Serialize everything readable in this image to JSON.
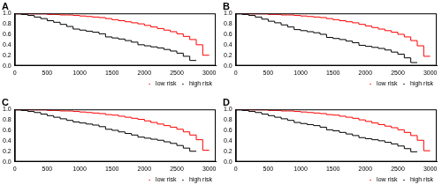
{
  "chart_data": [
    {
      "type": "line",
      "title": "A",
      "line_style": "step",
      "grid": false,
      "legend": "lower right",
      "x": [
        0,
        100,
        200,
        300,
        400,
        500,
        600,
        700,
        800,
        900,
        1000,
        1100,
        1200,
        1300,
        1400,
        1500,
        1600,
        1700,
        1800,
        1900,
        2000,
        2100,
        2200,
        2300,
        2400,
        2500,
        2600,
        2700,
        2800,
        2900,
        3000,
        3100
      ],
      "xlim": [
        0,
        3100
      ],
      "xticks": [
        0,
        500,
        1000,
        1500,
        2000,
        2500,
        3000
      ],
      "ylim": [
        0,
        1
      ],
      "yticks": [
        {
          "value": 0,
          "label": "0.0"
        },
        0.2,
        0.4,
        0.6,
        0.8,
        {
          "value": 1,
          "label": "1.0"
        }
      ],
      "series": [
        {
          "name": "low risk",
          "color": "#ff0000",
          "values": [
            1.0,
            1.0,
            1.0,
            0.99,
            0.99,
            0.99,
            0.98,
            0.98,
            0.97,
            0.97,
            0.96,
            0.95,
            0.94,
            0.93,
            0.92,
            0.9,
            0.88,
            0.86,
            0.84,
            0.82,
            0.8,
            0.77,
            0.74,
            0.71,
            0.68,
            0.65,
            0.61,
            0.56,
            0.5,
            0.4,
            0.2,
            null
          ]
        },
        {
          "name": "high risk",
          "color": "#000000",
          "values": [
            1.0,
            0.99,
            0.98,
            0.96,
            0.93,
            0.9,
            0.86,
            0.83,
            0.79,
            0.75,
            0.7,
            0.68,
            0.66,
            0.64,
            0.61,
            0.55,
            0.53,
            0.51,
            0.48,
            0.45,
            0.4,
            0.38,
            0.36,
            0.34,
            0.31,
            0.28,
            0.24,
            0.18,
            0.1,
            null,
            null,
            null
          ]
        }
      ]
    },
    {
      "type": "line",
      "title": "B",
      "line_style": "step",
      "grid": false,
      "legend": "lower right",
      "x": [
        0,
        100,
        200,
        300,
        400,
        500,
        600,
        700,
        800,
        900,
        1000,
        1100,
        1200,
        1300,
        1400,
        1500,
        1600,
        1700,
        1800,
        1900,
        2000,
        2100,
        2200,
        2300,
        2400,
        2500,
        2600,
        2700,
        2800,
        2900,
        3000,
        3100
      ],
      "xlim": [
        0,
        3100
      ],
      "xticks": [
        0,
        500,
        1000,
        1500,
        2000,
        2500,
        3000
      ],
      "ylim": [
        0,
        1
      ],
      "yticks": [
        {
          "value": 0,
          "label": "0.0"
        },
        0.2,
        0.4,
        0.6,
        0.8,
        {
          "value": 1,
          "label": "1.0"
        }
      ],
      "series": [
        {
          "name": "low risk",
          "color": "#ff0000",
          "values": [
            1.0,
            1.0,
            1.0,
            0.99,
            0.99,
            0.99,
            0.98,
            0.98,
            0.97,
            0.97,
            0.96,
            0.95,
            0.94,
            0.93,
            0.92,
            0.9,
            0.88,
            0.86,
            0.84,
            0.82,
            0.79,
            0.76,
            0.73,
            0.7,
            0.67,
            0.64,
            0.6,
            0.55,
            0.48,
            0.38,
            0.18,
            null
          ]
        },
        {
          "name": "high risk",
          "color": "#000000",
          "values": [
            1.0,
            0.99,
            0.98,
            0.96,
            0.93,
            0.89,
            0.85,
            0.82,
            0.78,
            0.74,
            0.69,
            0.67,
            0.65,
            0.63,
            0.6,
            0.54,
            0.52,
            0.5,
            0.47,
            0.44,
            0.39,
            0.37,
            0.35,
            0.33,
            0.3,
            0.26,
            0.22,
            0.15,
            0.06,
            null,
            null,
            null
          ]
        }
      ]
    },
    {
      "type": "line",
      "title": "C",
      "line_style": "step",
      "grid": false,
      "legend": "lower right",
      "x": [
        0,
        100,
        200,
        300,
        400,
        500,
        600,
        700,
        800,
        900,
        1000,
        1100,
        1200,
        1300,
        1400,
        1500,
        1600,
        1700,
        1800,
        1900,
        2000,
        2100,
        2200,
        2300,
        2400,
        2500,
        2600,
        2700,
        2800,
        2900,
        3000,
        3100
      ],
      "xlim": [
        0,
        3100
      ],
      "xticks": [
        0,
        500,
        1000,
        1500,
        2000,
        2500,
        3000
      ],
      "ylim": [
        0,
        1
      ],
      "yticks": [
        {
          "value": 0,
          "label": "0.0"
        },
        0.2,
        0.4,
        0.6,
        0.8,
        {
          "value": 1,
          "label": "1.0"
        }
      ],
      "series": [
        {
          "name": "low risk",
          "color": "#ff0000",
          "values": [
            1.0,
            1.0,
            1.0,
            0.99,
            0.99,
            0.99,
            0.98,
            0.98,
            0.97,
            0.97,
            0.96,
            0.95,
            0.94,
            0.93,
            0.92,
            0.9,
            0.89,
            0.87,
            0.85,
            0.83,
            0.81,
            0.78,
            0.75,
            0.72,
            0.69,
            0.66,
            0.62,
            0.57,
            0.51,
            0.42,
            0.22,
            null
          ]
        },
        {
          "name": "high risk",
          "color": "#000000",
          "values": [
            1.0,
            0.99,
            0.98,
            0.96,
            0.94,
            0.91,
            0.88,
            0.85,
            0.82,
            0.79,
            0.76,
            0.74,
            0.72,
            0.7,
            0.67,
            0.62,
            0.6,
            0.57,
            0.54,
            0.51,
            0.47,
            0.45,
            0.43,
            0.41,
            0.38,
            0.35,
            0.31,
            0.26,
            0.2,
            null,
            null,
            null
          ]
        }
      ]
    },
    {
      "type": "line",
      "title": "D",
      "line_style": "step",
      "grid": false,
      "legend": "lower right",
      "x": [
        0,
        100,
        200,
        300,
        400,
        500,
        600,
        700,
        800,
        900,
        1000,
        1100,
        1200,
        1300,
        1400,
        1500,
        1600,
        1700,
        1800,
        1900,
        2000,
        2100,
        2200,
        2300,
        2400,
        2500,
        2600,
        2700,
        2800,
        2900,
        3000,
        3100
      ],
      "xlim": [
        0,
        3100
      ],
      "xticks": [
        0,
        500,
        1000,
        1500,
        2000,
        2500,
        3000
      ],
      "ylim": [
        0,
        1
      ],
      "yticks": [
        {
          "value": 0,
          "label": "0.0"
        },
        0.2,
        0.4,
        0.6,
        0.8,
        {
          "value": 1,
          "label": "1.0"
        }
      ],
      "series": [
        {
          "name": "low risk",
          "color": "#ff0000",
          "values": [
            1.0,
            1.0,
            1.0,
            0.99,
            0.99,
            0.99,
            0.98,
            0.98,
            0.97,
            0.97,
            0.96,
            0.95,
            0.94,
            0.93,
            0.92,
            0.9,
            0.89,
            0.87,
            0.85,
            0.83,
            0.8,
            0.77,
            0.74,
            0.71,
            0.68,
            0.65,
            0.61,
            0.56,
            0.5,
            0.41,
            0.21,
            null
          ]
        },
        {
          "name": "high risk",
          "color": "#000000",
          "values": [
            1.0,
            0.99,
            0.98,
            0.96,
            0.94,
            0.91,
            0.88,
            0.85,
            0.82,
            0.79,
            0.75,
            0.73,
            0.71,
            0.69,
            0.66,
            0.61,
            0.59,
            0.56,
            0.53,
            0.5,
            0.46,
            0.44,
            0.42,
            0.4,
            0.37,
            0.34,
            0.3,
            0.25,
            0.19,
            null,
            null,
            null
          ]
        }
      ]
    }
  ]
}
